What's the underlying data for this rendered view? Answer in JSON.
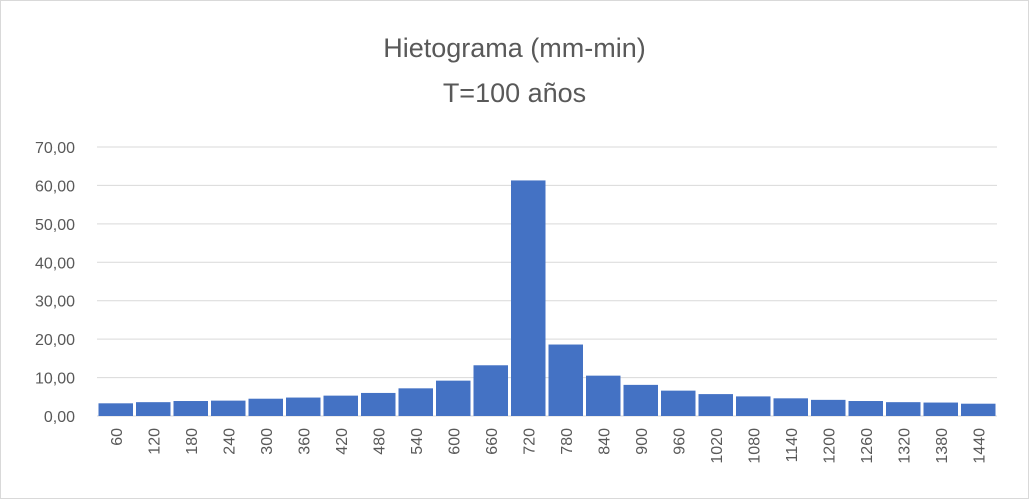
{
  "chart_data": {
    "type": "bar",
    "title": "Hietograma (mm-min)",
    "subtitle": "T=100 años",
    "xlabel": "",
    "ylabel": "",
    "categories": [
      "60",
      "120",
      "180",
      "240",
      "300",
      "360",
      "420",
      "480",
      "540",
      "600",
      "660",
      "720",
      "780",
      "840",
      "900",
      "960",
      "1020",
      "1080",
      "1140",
      "1200",
      "1260",
      "1320",
      "1380",
      "1440"
    ],
    "values": [
      3.3,
      3.6,
      3.9,
      4.0,
      4.5,
      4.8,
      5.3,
      6.0,
      7.2,
      9.2,
      13.2,
      61.3,
      18.6,
      10.5,
      8.1,
      6.6,
      5.7,
      5.1,
      4.6,
      4.2,
      3.9,
      3.6,
      3.5,
      3.2
    ],
    "ylim": [
      0,
      70
    ],
    "yticks": [
      "0,00",
      "10,00",
      "20,00",
      "30,00",
      "40,00",
      "50,00",
      "60,00",
      "70,00"
    ],
    "grid": true,
    "legend": "none",
    "colors": {
      "bar": "#4472C4",
      "grid": "#d9d9d9",
      "text": "#595959"
    }
  }
}
